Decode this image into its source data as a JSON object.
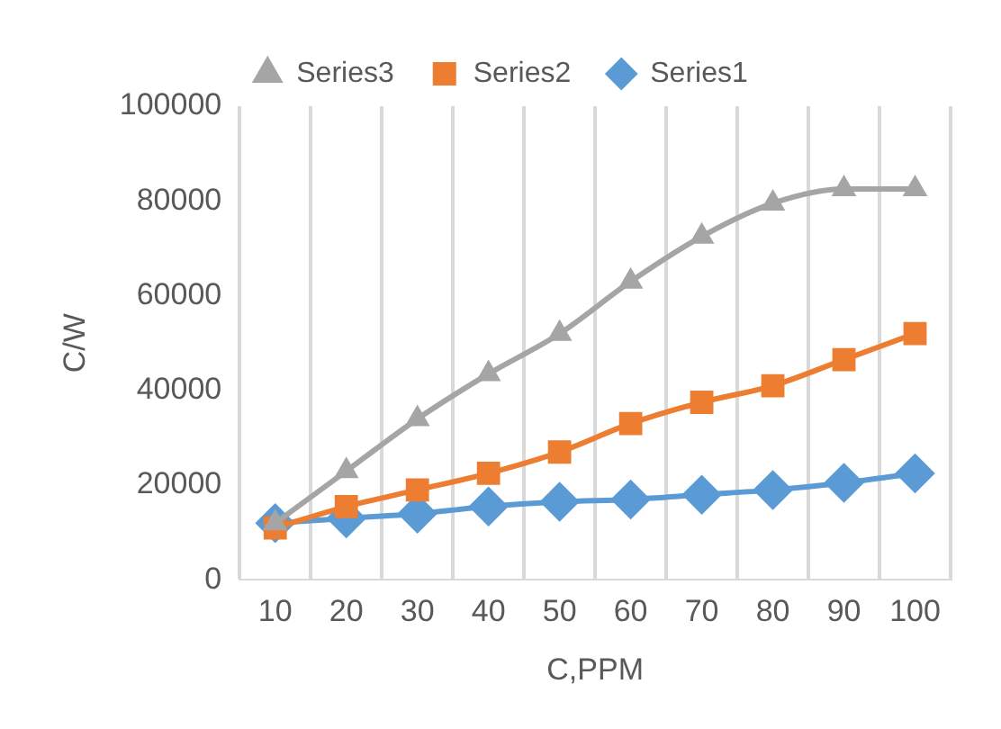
{
  "chart_data": {
    "type": "line",
    "xlabel": "C,PPM",
    "ylabel": "C/W",
    "categories": [
      "10",
      "20",
      "30",
      "40",
      "50",
      "60",
      "70",
      "80",
      "90",
      "100"
    ],
    "series": [
      {
        "name": "Series1",
        "color": "#5b9bd5",
        "marker": "diamond",
        "values": [
          12000,
          13000,
          14000,
          15500,
          16500,
          17000,
          18000,
          19000,
          20500,
          22500
        ]
      },
      {
        "name": "Series2",
        "color": "#ed7d31",
        "marker": "square",
        "values": [
          11000,
          15500,
          19000,
          22500,
          27000,
          33000,
          37500,
          41000,
          46500,
          52000
        ]
      },
      {
        "name": "Series3",
        "color": "#a5a5a5",
        "marker": "triangle",
        "values": [
          12000,
          23000,
          34000,
          43500,
          52000,
          63000,
          72500,
          79500,
          82500,
          82500
        ]
      }
    ],
    "ylim": [
      0,
      100000
    ],
    "yticks": [
      0,
      20000,
      40000,
      60000,
      80000,
      100000
    ],
    "grid": "x",
    "legend": "top"
  }
}
